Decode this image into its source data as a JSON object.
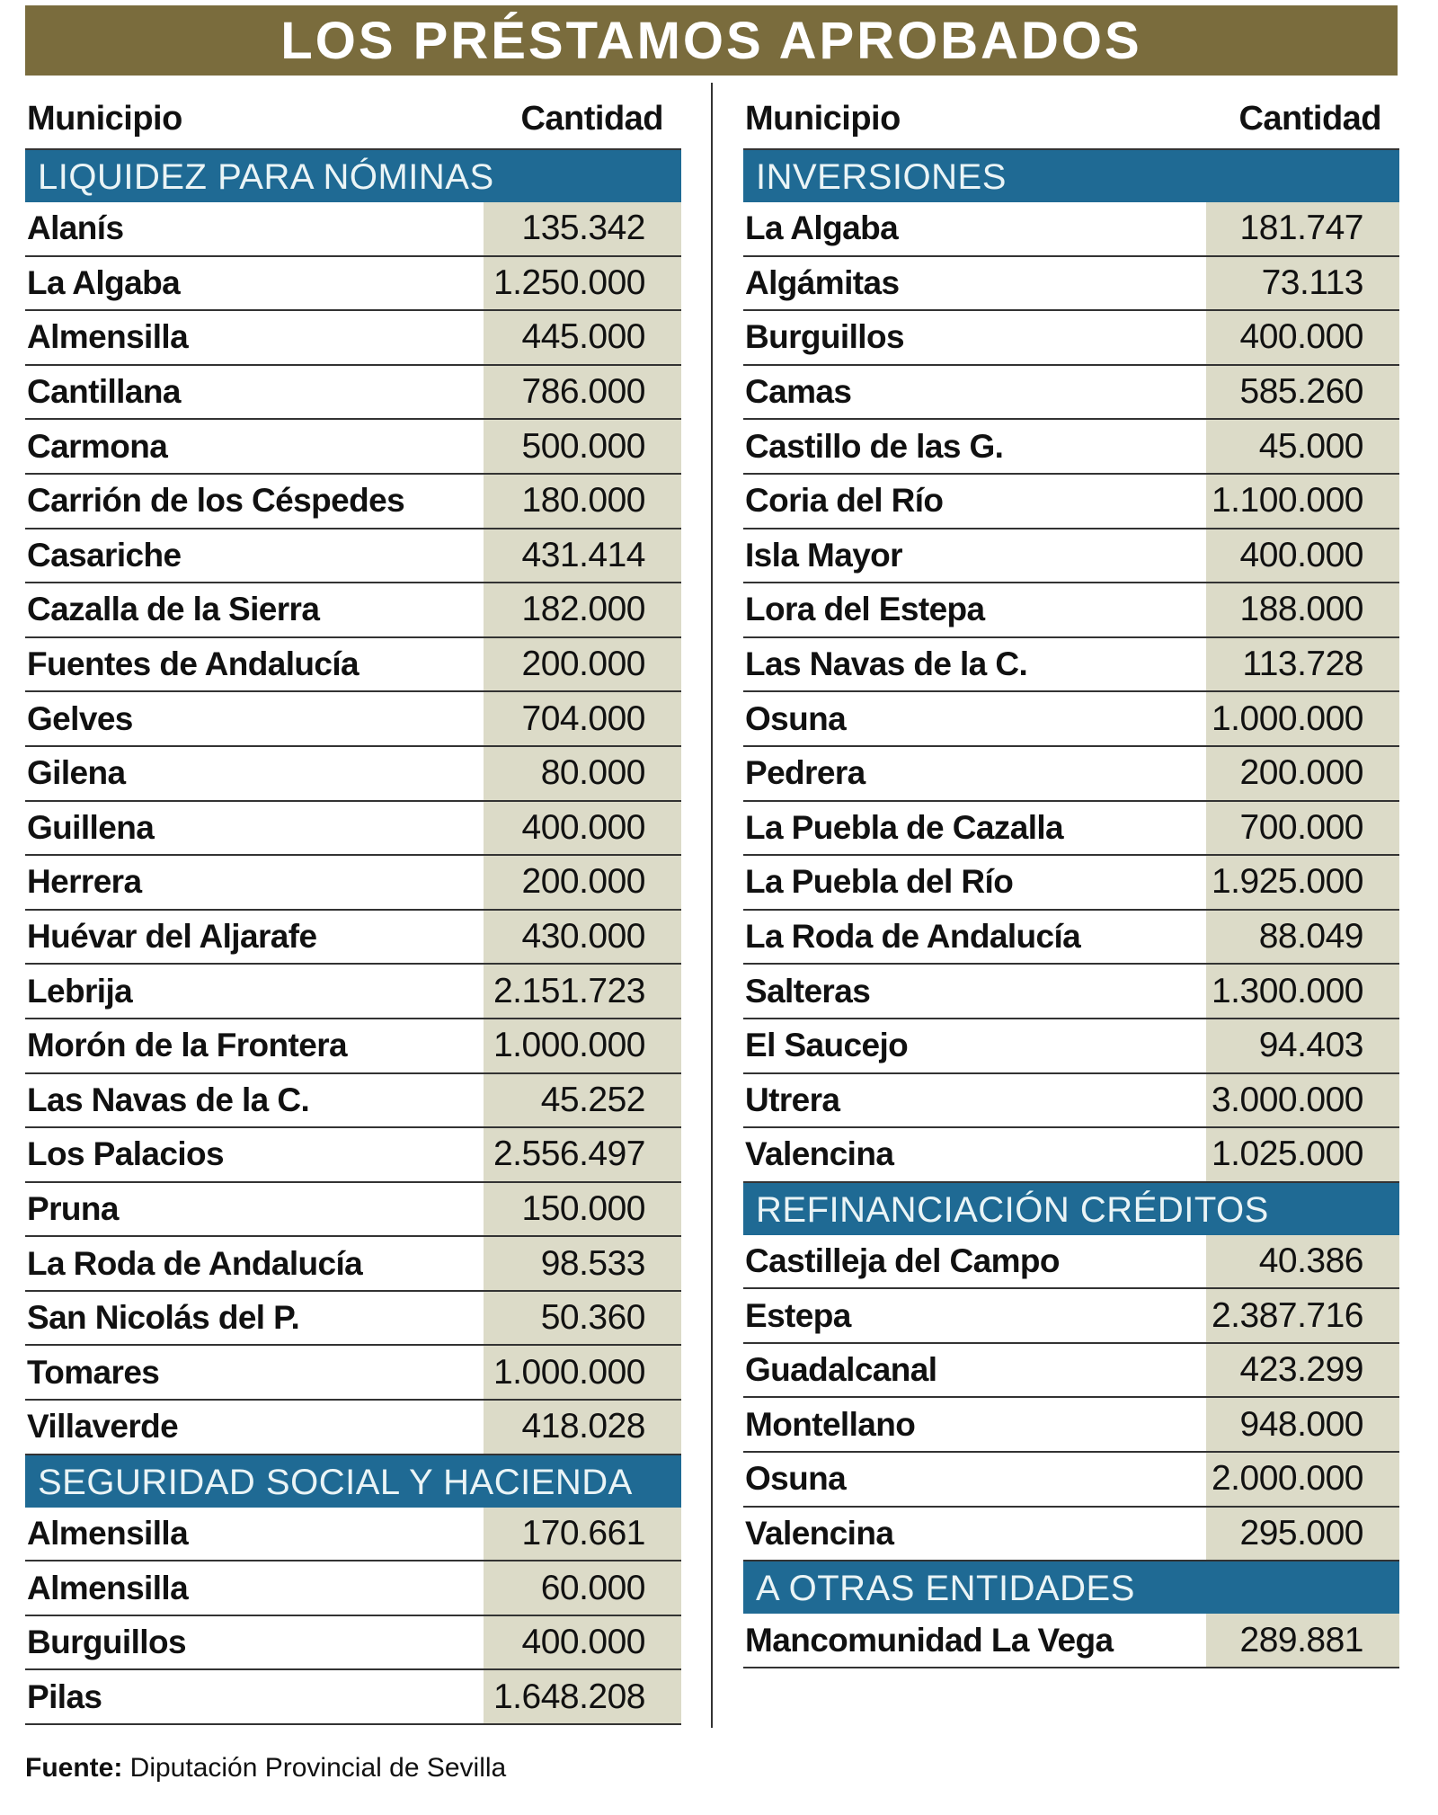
{
  "title": "LOS PRÉSTAMOS APROBADOS",
  "columns": {
    "municipio": "Municipio",
    "cantidad": "Cantidad"
  },
  "colors": {
    "banner": "#7a6c3d",
    "section": "#1f6a94",
    "amount_shade": "#dcdbc8"
  },
  "left_sections": [
    {
      "title": "LIQUIDEZ PARA NÓMINAS",
      "rows": [
        {
          "name": "Alanís",
          "amount": "135.342"
        },
        {
          "name": "La Algaba",
          "amount": "1.250.000"
        },
        {
          "name": "Almensilla",
          "amount": "445.000"
        },
        {
          "name": "Cantillana",
          "amount": "786.000"
        },
        {
          "name": "Carmona",
          "amount": "500.000"
        },
        {
          "name": "Carrión de los Céspedes",
          "amount": "180.000"
        },
        {
          "name": "Casariche",
          "amount": "431.414"
        },
        {
          "name": "Cazalla de la Sierra",
          "amount": "182.000"
        },
        {
          "name": "Fuentes de Andalucía",
          "amount": "200.000"
        },
        {
          "name": "Gelves",
          "amount": "704.000"
        },
        {
          "name": "Gilena",
          "amount": "80.000"
        },
        {
          "name": "Guillena",
          "amount": "400.000"
        },
        {
          "name": "Herrera",
          "amount": "200.000"
        },
        {
          "name": "Huévar del Aljarafe",
          "amount": "430.000"
        },
        {
          "name": "Lebrija",
          "amount": "2.151.723"
        },
        {
          "name": "Morón de la Frontera",
          "amount": "1.000.000"
        },
        {
          "name": "Las Navas de la C.",
          "amount": "45.252"
        },
        {
          "name": "Los Palacios",
          "amount": "2.556.497"
        },
        {
          "name": "Pruna",
          "amount": "150.000"
        },
        {
          "name": "La Roda de Andalucía",
          "amount": "98.533"
        },
        {
          "name": "San Nicolás del P.",
          "amount": "50.360"
        },
        {
          "name": "Tomares",
          "amount": "1.000.000"
        },
        {
          "name": "Villaverde",
          "amount": "418.028"
        }
      ]
    },
    {
      "title": "SEGURIDAD SOCIAL Y HACIENDA",
      "rows": [
        {
          "name": "Almensilla",
          "amount": "170.661"
        },
        {
          "name": "Almensilla",
          "amount": "60.000"
        },
        {
          "name": "Burguillos",
          "amount": "400.000"
        },
        {
          "name": "Pilas",
          "amount": "1.648.208"
        }
      ]
    }
  ],
  "right_sections": [
    {
      "title": "INVERSIONES",
      "rows": [
        {
          "name": "La Algaba",
          "amount": "181.747"
        },
        {
          "name": "Algámitas",
          "amount": "73.113"
        },
        {
          "name": "Burguillos",
          "amount": "400.000"
        },
        {
          "name": "Camas",
          "amount": "585.260"
        },
        {
          "name": "Castillo de las G.",
          "amount": "45.000"
        },
        {
          "name": "Coria del Río",
          "amount": "1.100.000"
        },
        {
          "name": "Isla Mayor",
          "amount": "400.000"
        },
        {
          "name": "Lora del Estepa",
          "amount": "188.000"
        },
        {
          "name": "Las Navas de la C.",
          "amount": "113.728"
        },
        {
          "name": "Osuna",
          "amount": "1.000.000"
        },
        {
          "name": "Pedrera",
          "amount": "200.000"
        },
        {
          "name": "La Puebla de Cazalla",
          "amount": "700.000"
        },
        {
          "name": "La Puebla del Río",
          "amount": "1.925.000"
        },
        {
          "name": "La Roda de Andalucía",
          "amount": "88.049"
        },
        {
          "name": "Salteras",
          "amount": "1.300.000"
        },
        {
          "name": "El Saucejo",
          "amount": "94.403"
        },
        {
          "name": "Utrera",
          "amount": "3.000.000"
        },
        {
          "name": "Valencina",
          "amount": "1.025.000"
        }
      ]
    },
    {
      "title": "REFINANCIACIÓN CRÉDITOS",
      "rows": [
        {
          "name": "Castilleja del Campo",
          "amount": "40.386"
        },
        {
          "name": "Estepa",
          "amount": "2.387.716"
        },
        {
          "name": "Guadalcanal",
          "amount": "423.299"
        },
        {
          "name": "Montellano",
          "amount": "948.000"
        },
        {
          "name": "Osuna",
          "amount": "2.000.000"
        },
        {
          "name": "Valencina",
          "amount": "295.000"
        }
      ]
    },
    {
      "title": "A OTRAS ENTIDADES",
      "rows": [
        {
          "name": "Mancomunidad La Vega",
          "amount": "289.881"
        }
      ]
    }
  ],
  "footer": {
    "label": "Fuente:",
    "text": " Diputación Provincial de Sevilla"
  }
}
